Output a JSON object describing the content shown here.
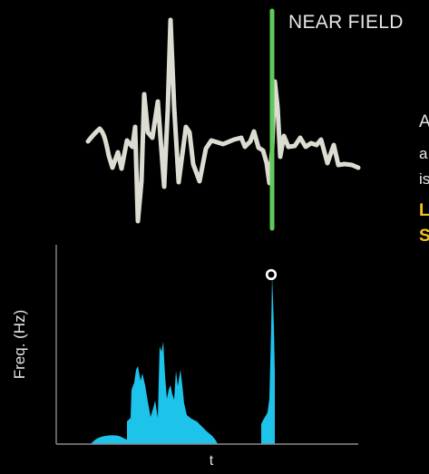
{
  "title": "NEAR FIELD",
  "side_text": [
    "A",
    "a",
    "is",
    "L",
    "S"
  ],
  "axes": {
    "ylabel": "Freq. (Hz)",
    "xlabel": "t"
  },
  "colors": {
    "background": "#000000",
    "text": "#e6e6e6",
    "waveform": "#dcdcd2",
    "marker": "#62c85a",
    "spectrum_fill": "#1ec3ea",
    "axis": "#8a8a8a",
    "highlight": "#f2c318"
  }
}
